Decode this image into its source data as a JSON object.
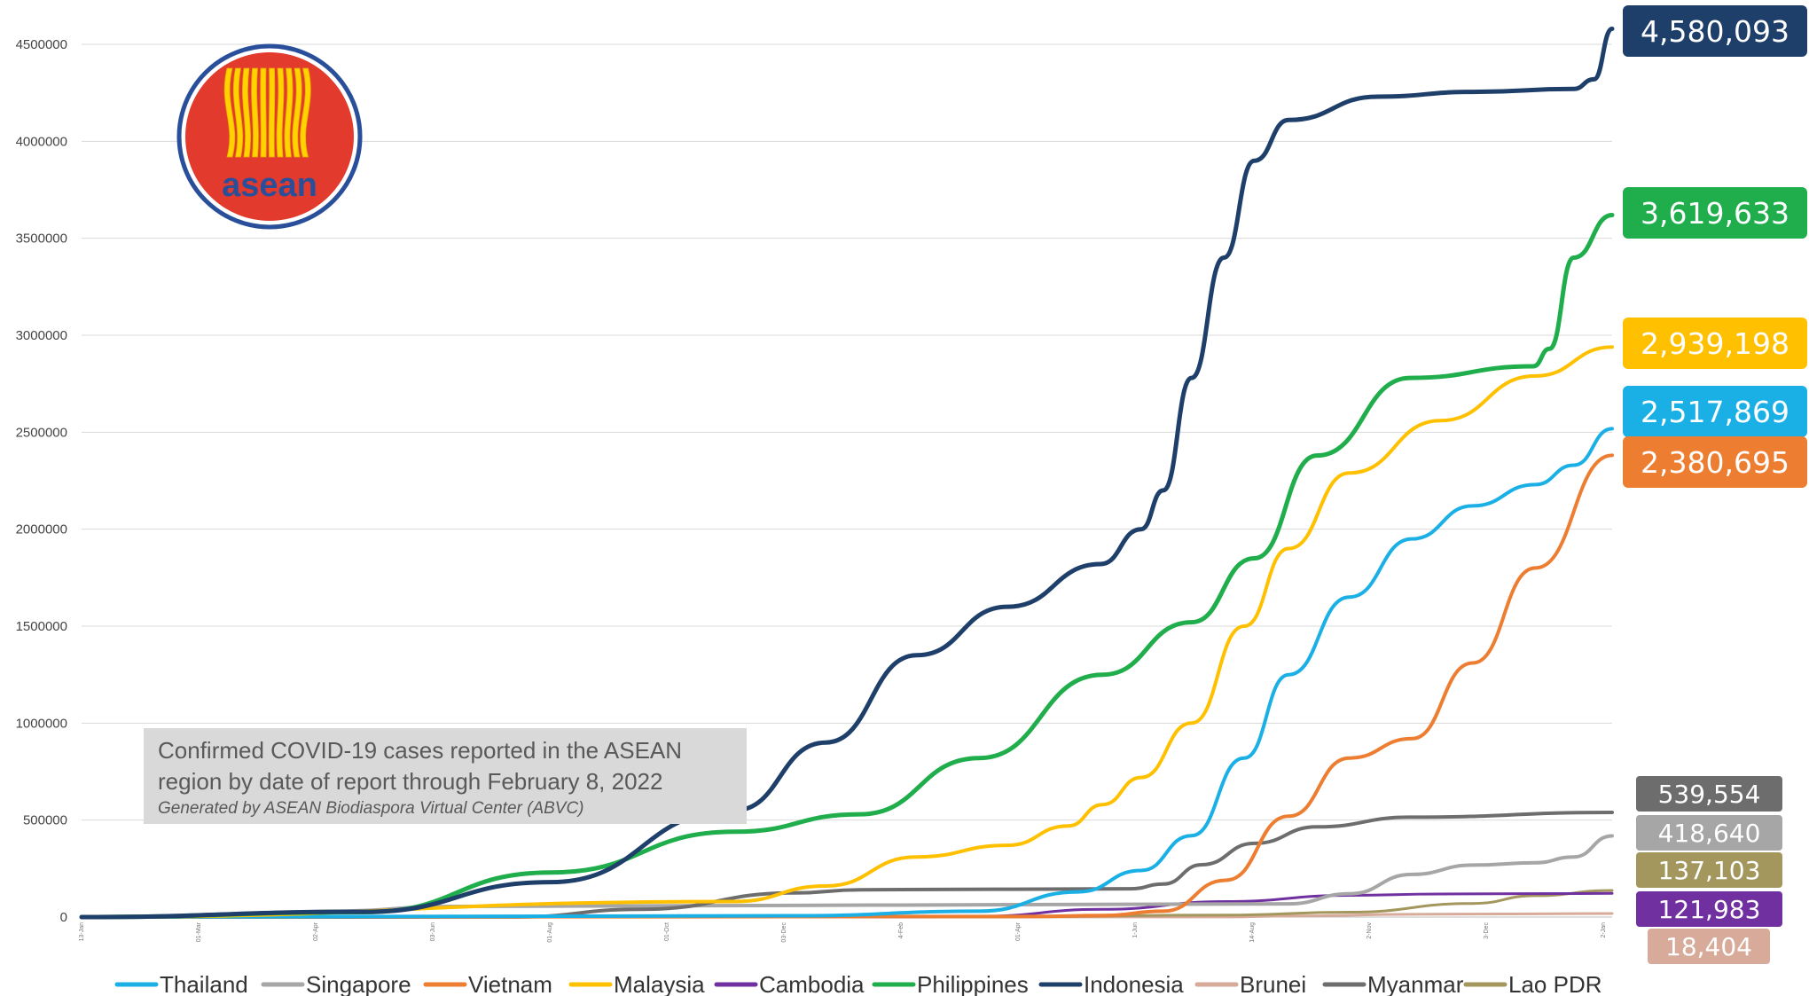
{
  "colors": {
    "Thailand": "#1ab0e5",
    "Singapore": "#a6a6a6",
    "Vietnam": "#ec7d31",
    "Malaysia": "#ffc000",
    "Cambodia": "#7030a0",
    "Philippines": "#1fae4b",
    "Indonesia": "#1f3f6b",
    "Brunei": "#d7aa9a",
    "Myanmar": "#6d6d6d",
    "Lao PDR": "#a3975e",
    "asean_blue": "#2a4f9a",
    "asean_red": "#e23b2e",
    "asean_yellow": "#ffd200",
    "info_box": "#d9d9d9"
  },
  "logo": {
    "text": "asean",
    "icon": "asean-rice-stalks-emblem"
  },
  "info_box": {
    "title": "Confirmed COVID-19 cases reported in the ASEAN\nregion by date of report  through February 8, 2022",
    "credit": "Generated by ASEAN Biodiaspora Virtual Center (ABVC)"
  },
  "chart_data": {
    "type": "line",
    "title": "",
    "xlabel": "",
    "ylabel": "",
    "ylim": [
      0,
      4500000
    ],
    "y_ticks": [
      "0",
      "500000",
      "1000000",
      "1500000",
      "2000000",
      "2500000",
      "3000000",
      "3500000",
      "4000000",
      "4500000"
    ],
    "x_range": [
      "2020-01-13",
      "2022-02-08"
    ],
    "x_month_labels": [
      "13-Jan",
      "01-Mar",
      "02-Apr",
      "03-Jun",
      "01-Aug",
      "01-Oct",
      "03-Dec",
      "4-Feb",
      "01-Apr",
      "1-Jun",
      "14-Aug",
      "2-Nov",
      "3-Dec",
      "2-Jan"
    ],
    "grid": true,
    "legend_position": "bottom",
    "series": [
      {
        "name": "Indonesia",
        "final_label": "4,580,093",
        "x": [
          "2020-01-13",
          "2020-06-01",
          "2020-09-01",
          "2020-12-01",
          "2021-01-15",
          "2021-03-01",
          "2021-04-15",
          "2021-05-31",
          "2021-06-20",
          "2021-07-01",
          "2021-07-15",
          "2021-07-31",
          "2021-08-15",
          "2021-09-01",
          "2021-10-15",
          "2021-12-01",
          "2022-01-20",
          "2022-01-30",
          "2022-02-08"
        ],
        "values": [
          0,
          27000,
          180000,
          550000,
          900000,
          1350000,
          1600000,
          1820000,
          2000000,
          2200000,
          2780000,
          3400000,
          3900000,
          4110000,
          4230000,
          4255000,
          4270000,
          4320000,
          4580093
        ]
      },
      {
        "name": "Philippines",
        "final_label": "3,619,633",
        "x": [
          "2020-01-13",
          "2020-06-01",
          "2020-09-01",
          "2020-12-01",
          "2021-02-01",
          "2021-04-01",
          "2021-06-01",
          "2021-07-15",
          "2021-08-15",
          "2021-09-15",
          "2021-10-31",
          "2021-12-31",
          "2022-01-08",
          "2022-01-20",
          "2022-02-08"
        ],
        "values": [
          0,
          25000,
          230000,
          440000,
          530000,
          820000,
          1250000,
          1520000,
          1850000,
          2380000,
          2780000,
          2840000,
          2930000,
          3400000,
          3619633
        ]
      },
      {
        "name": "Malaysia",
        "final_label": "2,939,198",
        "x": [
          "2020-01-13",
          "2020-12-01",
          "2021-01-15",
          "2021-03-01",
          "2021-04-15",
          "2021-05-15",
          "2021-06-01",
          "2021-06-20",
          "2021-07-15",
          "2021-08-10",
          "2021-09-01",
          "2021-10-01",
          "2021-11-15",
          "2022-01-01",
          "2022-02-08"
        ],
        "values": [
          0,
          80000,
          160000,
          310000,
          370000,
          470000,
          580000,
          720000,
          1000000,
          1500000,
          1900000,
          2290000,
          2560000,
          2790000,
          2939198
        ]
      },
      {
        "name": "Thailand",
        "final_label": "2,517,869",
        "x": [
          "2020-01-13",
          "2020-12-31",
          "2021-04-01",
          "2021-05-20",
          "2021-06-20",
          "2021-07-15",
          "2021-08-10",
          "2021-09-01",
          "2021-10-01",
          "2021-11-01",
          "2021-12-01",
          "2022-01-01",
          "2022-01-20",
          "2022-02-08"
        ],
        "values": [
          0,
          7000,
          30000,
          130000,
          240000,
          420000,
          820000,
          1250000,
          1650000,
          1950000,
          2120000,
          2230000,
          2330000,
          2517869
        ]
      },
      {
        "name": "Vietnam",
        "final_label": "2,380,695",
        "x": [
          "2020-01-13",
          "2021-04-30",
          "2021-06-01",
          "2021-07-01",
          "2021-08-01",
          "2021-09-01",
          "2021-10-01",
          "2021-11-01",
          "2021-12-01",
          "2022-01-01",
          "2022-02-08"
        ],
        "values": [
          0,
          3000,
          8000,
          30000,
          190000,
          520000,
          820000,
          920000,
          1310000,
          1800000,
          2380695
        ]
      },
      {
        "name": "Myanmar",
        "final_label": "539,554",
        "x": [
          "2020-01-13",
          "2020-08-15",
          "2020-10-15",
          "2020-12-31",
          "2021-02-01",
          "2021-06-15",
          "2021-07-01",
          "2021-07-20",
          "2021-08-15",
          "2021-09-15",
          "2021-10-31",
          "2022-02-08"
        ],
        "values": [
          0,
          500,
          40000,
          125000,
          141000,
          146000,
          170000,
          270000,
          380000,
          465000,
          515000,
          539554
        ]
      },
      {
        "name": "Singapore",
        "final_label": "418,640",
        "x": [
          "2020-01-13",
          "2020-04-01",
          "2020-05-15",
          "2020-07-15",
          "2021-09-01",
          "2021-10-01",
          "2021-11-01",
          "2021-12-01",
          "2022-01-01",
          "2022-01-20",
          "2022-02-08"
        ],
        "values": [
          0,
          1000,
          30000,
          55000,
          68000,
          120000,
          220000,
          268000,
          280000,
          310000,
          418640
        ]
      },
      {
        "name": "Lao PDR",
        "final_label": "137,103",
        "x": [
          "2020-01-13",
          "2021-04-01",
          "2021-08-01",
          "2021-10-01",
          "2021-12-01",
          "2022-01-01",
          "2022-02-08"
        ],
        "values": [
          0,
          100,
          10000,
          25000,
          70000,
          110000,
          137103
        ]
      },
      {
        "name": "Cambodia",
        "final_label": "121,983",
        "x": [
          "2020-01-13",
          "2021-02-15",
          "2021-04-01",
          "2021-06-01",
          "2021-08-01",
          "2021-10-01",
          "2021-11-15",
          "2022-02-08"
        ],
        "values": [
          0,
          500,
          4000,
          40000,
          80000,
          112000,
          119000,
          121983
        ]
      },
      {
        "name": "Brunei",
        "final_label": "18,404",
        "x": [
          "2020-01-13",
          "2021-08-01",
          "2021-09-01",
          "2021-11-01",
          "2022-02-08"
        ],
        "values": [
          0,
          300,
          5000,
          14000,
          18404
        ]
      }
    ],
    "legend_order": [
      "Thailand",
      "Singapore",
      "Vietnam",
      "Malaysia",
      "Cambodia",
      "Philippines",
      "Indonesia",
      "Brunei",
      "Myanmar",
      "Lao PDR"
    ]
  }
}
